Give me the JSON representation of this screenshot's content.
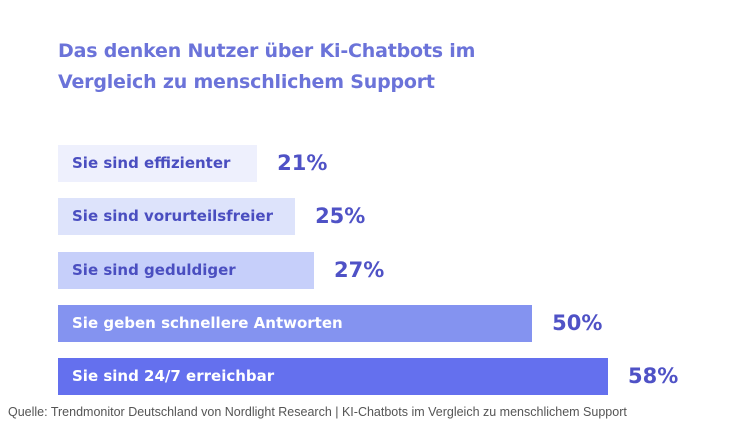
{
  "chart_data": {
    "type": "bar",
    "orientation": "horizontal",
    "title": "Das denken Nutzer über Ki-Chatbots im Vergleich zu menschlichem Support",
    "title_lines": [
      "Das denken Nutzer über Ki-Chatbots im",
      "Vergleich zu menschlichem Support"
    ],
    "categories": [
      "Sie sind effizienter",
      "Sie sind vorurteilsfreier",
      "Sie sind geduldiger",
      "Sie geben schnellere Antworten",
      "Sie sind 24/7 erreichbar"
    ],
    "values": [
      21,
      25,
      27,
      50,
      58
    ],
    "value_labels": [
      "21%",
      "25%",
      "27%",
      "50%",
      "58%"
    ],
    "colors": [
      "#eef0fd",
      "#dde3fb",
      "#c6cffa",
      "#8493f0",
      "#6470ee"
    ],
    "label_colors": [
      "#4a4ec0",
      "#4a4ec0",
      "#4a4ec0",
      "#ffffff",
      "#ffffff"
    ],
    "xlim": [
      0,
      58
    ],
    "grid": false,
    "source": "Quelle: Trendmonitor Deutschland von  Nordlight Research |  KI-Chatbots im Vergleich zu menschlichem Support"
  }
}
